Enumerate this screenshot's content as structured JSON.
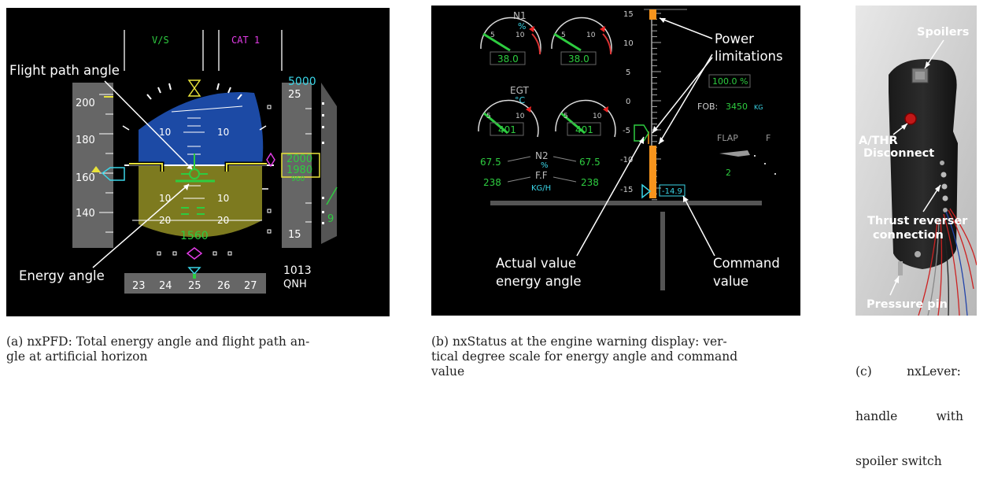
{
  "pfd": {
    "vs_label": "V/S",
    "cat_label": "CAT 1",
    "alt_target": "5000",
    "speed_ticks": [
      "200",
      "180",
      "160",
      "140"
    ],
    "alt_ticks": [
      "25",
      "15"
    ],
    "alt_readout_top": "2000",
    "alt_readout_mid": "1980",
    "alt_readout_low": "960",
    "pitch_labels": [
      "10",
      "10",
      "10",
      "10",
      "20",
      "20"
    ],
    "radio_alt": "1560",
    "vs_value": "9",
    "heading_ticks": [
      "23",
      "24",
      "25",
      "26",
      "27"
    ],
    "baro_value": "1013",
    "baro_unit": "QNH",
    "annotation_fpa": "Flight path angle",
    "annotation_energy": "Energy angle"
  },
  "status": {
    "n1_label": "N1",
    "n1_unit": "%",
    "n1_left": "38.0",
    "n1_right": "38.0",
    "egt_label": "EGT",
    "egt_unit": "°C",
    "egt_left": "401",
    "egt_right": "401",
    "n2_label": "N2",
    "n2_unit": "%",
    "n2_left": "67.5",
    "n2_right": "67.5",
    "ff_label": "F.F",
    "ff_unit": "KG/H",
    "ff_left": "238",
    "ff_right": "238",
    "gauge_tick_5": "5",
    "gauge_tick_10": "10",
    "scale_labels": [
      "15",
      "10",
      "5",
      "0",
      "-5",
      "-10",
      "-15"
    ],
    "thrust_pct": "100.0 %",
    "fob_label": "FOB:",
    "fob_value": "3450",
    "fob_unit": "KG",
    "flap_label": "FLAP",
    "flap_f": "F",
    "flap_value": "2",
    "command_readout": "-14.9",
    "annotation_power_1": "Power",
    "annotation_power_2": "limitations",
    "annotation_actual_1": "Actual value",
    "annotation_actual_2": "energy angle",
    "annotation_command_1": "Command",
    "annotation_command_2": "value"
  },
  "lever": {
    "label_spoilers": "Spoilers",
    "label_athr_1": "A/THR",
    "label_athr_2": "Disconnect",
    "label_reverser_1": "Thrust reverser",
    "label_reverser_2": "connection",
    "label_pin": "Pressure pin"
  },
  "captions": {
    "a_line1": "(a) nxPFD: Total energy angle and flight path an-",
    "a_line2": "gle at artificial horizon",
    "b_line1": "(b) nxStatus at the engine warning display: ver-",
    "b_line2": "tical degree scale for energy angle and command",
    "b_line3": "value",
    "c_line1": "(c)         nxLever:",
    "c_line2": "handle          with",
    "c_line3": "spoiler switch"
  },
  "colors": {
    "sky": "#1c4aa5",
    "ground": "#7d7a1f",
    "green": "#2ecc40",
    "cyan": "#3ad6e8",
    "magenta": "#e23ce6",
    "yellow": "#e8e23a",
    "orange": "#f7941d",
    "gray": "#555555"
  }
}
